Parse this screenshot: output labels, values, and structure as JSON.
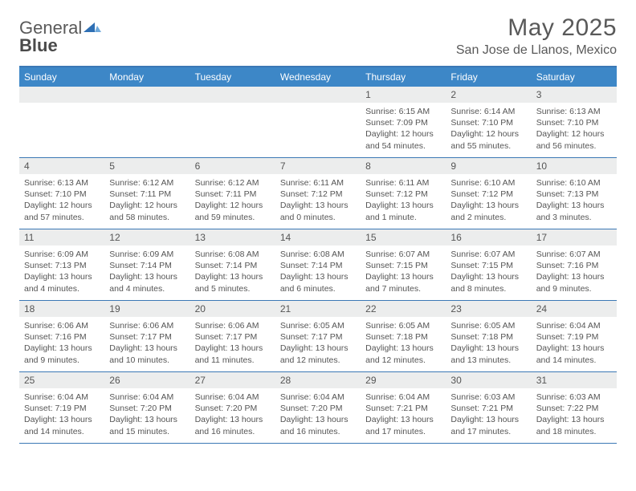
{
  "brand": {
    "name_a": "General",
    "name_b": "Blue"
  },
  "title": "May 2025",
  "location": "San Jose de Llanos, Mexico",
  "colors": {
    "header_bg": "#3d87c7",
    "rule": "#3b78b5",
    "daybar_bg": "#eceded",
    "text": "#555555"
  },
  "day_headers": [
    "Sunday",
    "Monday",
    "Tuesday",
    "Wednesday",
    "Thursday",
    "Friday",
    "Saturday"
  ],
  "weeks": [
    [
      null,
      null,
      null,
      null,
      {
        "n": "1",
        "sr": "6:15 AM",
        "ss": "7:09 PM",
        "dl": "12 hours and 54 minutes."
      },
      {
        "n": "2",
        "sr": "6:14 AM",
        "ss": "7:10 PM",
        "dl": "12 hours and 55 minutes."
      },
      {
        "n": "3",
        "sr": "6:13 AM",
        "ss": "7:10 PM",
        "dl": "12 hours and 56 minutes."
      }
    ],
    [
      {
        "n": "4",
        "sr": "6:13 AM",
        "ss": "7:10 PM",
        "dl": "12 hours and 57 minutes."
      },
      {
        "n": "5",
        "sr": "6:12 AM",
        "ss": "7:11 PM",
        "dl": "12 hours and 58 minutes."
      },
      {
        "n": "6",
        "sr": "6:12 AM",
        "ss": "7:11 PM",
        "dl": "12 hours and 59 minutes."
      },
      {
        "n": "7",
        "sr": "6:11 AM",
        "ss": "7:12 PM",
        "dl": "13 hours and 0 minutes."
      },
      {
        "n": "8",
        "sr": "6:11 AM",
        "ss": "7:12 PM",
        "dl": "13 hours and 1 minute."
      },
      {
        "n": "9",
        "sr": "6:10 AM",
        "ss": "7:12 PM",
        "dl": "13 hours and 2 minutes."
      },
      {
        "n": "10",
        "sr": "6:10 AM",
        "ss": "7:13 PM",
        "dl": "13 hours and 3 minutes."
      }
    ],
    [
      {
        "n": "11",
        "sr": "6:09 AM",
        "ss": "7:13 PM",
        "dl": "13 hours and 4 minutes."
      },
      {
        "n": "12",
        "sr": "6:09 AM",
        "ss": "7:14 PM",
        "dl": "13 hours and 4 minutes."
      },
      {
        "n": "13",
        "sr": "6:08 AM",
        "ss": "7:14 PM",
        "dl": "13 hours and 5 minutes."
      },
      {
        "n": "14",
        "sr": "6:08 AM",
        "ss": "7:14 PM",
        "dl": "13 hours and 6 minutes."
      },
      {
        "n": "15",
        "sr": "6:07 AM",
        "ss": "7:15 PM",
        "dl": "13 hours and 7 minutes."
      },
      {
        "n": "16",
        "sr": "6:07 AM",
        "ss": "7:15 PM",
        "dl": "13 hours and 8 minutes."
      },
      {
        "n": "17",
        "sr": "6:07 AM",
        "ss": "7:16 PM",
        "dl": "13 hours and 9 minutes."
      }
    ],
    [
      {
        "n": "18",
        "sr": "6:06 AM",
        "ss": "7:16 PM",
        "dl": "13 hours and 9 minutes."
      },
      {
        "n": "19",
        "sr": "6:06 AM",
        "ss": "7:17 PM",
        "dl": "13 hours and 10 minutes."
      },
      {
        "n": "20",
        "sr": "6:06 AM",
        "ss": "7:17 PM",
        "dl": "13 hours and 11 minutes."
      },
      {
        "n": "21",
        "sr": "6:05 AM",
        "ss": "7:17 PM",
        "dl": "13 hours and 12 minutes."
      },
      {
        "n": "22",
        "sr": "6:05 AM",
        "ss": "7:18 PM",
        "dl": "13 hours and 12 minutes."
      },
      {
        "n": "23",
        "sr": "6:05 AM",
        "ss": "7:18 PM",
        "dl": "13 hours and 13 minutes."
      },
      {
        "n": "24",
        "sr": "6:04 AM",
        "ss": "7:19 PM",
        "dl": "13 hours and 14 minutes."
      }
    ],
    [
      {
        "n": "25",
        "sr": "6:04 AM",
        "ss": "7:19 PM",
        "dl": "13 hours and 14 minutes."
      },
      {
        "n": "26",
        "sr": "6:04 AM",
        "ss": "7:20 PM",
        "dl": "13 hours and 15 minutes."
      },
      {
        "n": "27",
        "sr": "6:04 AM",
        "ss": "7:20 PM",
        "dl": "13 hours and 16 minutes."
      },
      {
        "n": "28",
        "sr": "6:04 AM",
        "ss": "7:20 PM",
        "dl": "13 hours and 16 minutes."
      },
      {
        "n": "29",
        "sr": "6:04 AM",
        "ss": "7:21 PM",
        "dl": "13 hours and 17 minutes."
      },
      {
        "n": "30",
        "sr": "6:03 AM",
        "ss": "7:21 PM",
        "dl": "13 hours and 17 minutes."
      },
      {
        "n": "31",
        "sr": "6:03 AM",
        "ss": "7:22 PM",
        "dl": "13 hours and 18 minutes."
      }
    ]
  ],
  "labels": {
    "sunrise": "Sunrise:",
    "sunset": "Sunset:",
    "daylight": "Daylight:"
  }
}
